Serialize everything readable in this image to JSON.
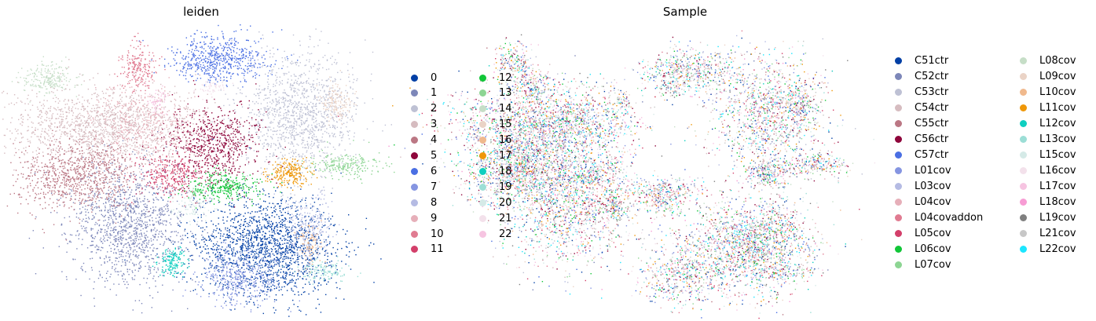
{
  "chart_data": [
    {
      "type": "scatter",
      "title": "leiden",
      "xlabel": "",
      "ylabel": "",
      "grid": false,
      "axes_visible": false,
      "legend_placement": "right",
      "legend": [
        {
          "label": "0",
          "color": "#023fa5"
        },
        {
          "label": "1",
          "color": "#7d87b9"
        },
        {
          "label": "2",
          "color": "#bec1d4"
        },
        {
          "label": "3",
          "color": "#d6bcc0"
        },
        {
          "label": "4",
          "color": "#bb7784"
        },
        {
          "label": "5",
          "color": "#8e063b"
        },
        {
          "label": "6",
          "color": "#4a6fe3"
        },
        {
          "label": "7",
          "color": "#8595e1"
        },
        {
          "label": "8",
          "color": "#b5bbe3"
        },
        {
          "label": "9",
          "color": "#e6afb9"
        },
        {
          "label": "10",
          "color": "#e07b91"
        },
        {
          "label": "11",
          "color": "#d33f6a"
        },
        {
          "label": "12",
          "color": "#11c638"
        },
        {
          "label": "13",
          "color": "#8dd593"
        },
        {
          "label": "14",
          "color": "#c6dec7"
        },
        {
          "label": "15",
          "color": "#ead3c6"
        },
        {
          "label": "16",
          "color": "#f0b98d"
        },
        {
          "label": "17",
          "color": "#ef9708"
        },
        {
          "label": "18",
          "color": "#0fcfc0"
        },
        {
          "label": "19",
          "color": "#9cded6"
        },
        {
          "label": "20",
          "color": "#d5eae7"
        },
        {
          "label": "21",
          "color": "#f3e1eb"
        },
        {
          "label": "22",
          "color": "#f6c4e1"
        }
      ]
    },
    {
      "type": "scatter",
      "title": "Sample",
      "xlabel": "",
      "ylabel": "",
      "grid": false,
      "axes_visible": false,
      "legend_placement": "right",
      "legend": [
        {
          "label": "C51ctr",
          "color": "#023fa5"
        },
        {
          "label": "C52ctr",
          "color": "#7d87b9"
        },
        {
          "label": "C53ctr",
          "color": "#bec1d4"
        },
        {
          "label": "C54ctr",
          "color": "#d6bcc0"
        },
        {
          "label": "C55ctr",
          "color": "#bb7784"
        },
        {
          "label": "C56ctr",
          "color": "#8e063b"
        },
        {
          "label": "C57ctr",
          "color": "#4a6fe3"
        },
        {
          "label": "L01cov",
          "color": "#8595e1"
        },
        {
          "label": "L03cov",
          "color": "#b5bbe3"
        },
        {
          "label": "L04cov",
          "color": "#e6afb9"
        },
        {
          "label": "L04covaddon",
          "color": "#e07b91"
        },
        {
          "label": "L05cov",
          "color": "#d33f6a"
        },
        {
          "label": "L06cov",
          "color": "#11c638"
        },
        {
          "label": "L07cov",
          "color": "#8dd593"
        },
        {
          "label": "L08cov",
          "color": "#c6dec7"
        },
        {
          "label": "L09cov",
          "color": "#ead3c6"
        },
        {
          "label": "L10cov",
          "color": "#f0b98d"
        },
        {
          "label": "L11cov",
          "color": "#ef9708"
        },
        {
          "label": "L12cov",
          "color": "#0fcfc0"
        },
        {
          "label": "L13cov",
          "color": "#9cded6"
        },
        {
          "label": "L15cov",
          "color": "#d5eae7"
        },
        {
          "label": "L16cov",
          "color": "#f3e1eb"
        },
        {
          "label": "L17cov",
          "color": "#f6c4e1"
        },
        {
          "label": "L18cov",
          "color": "#f79cd4"
        },
        {
          "label": "L19cov",
          "color": "#7f7f7f"
        },
        {
          "label": "L21cov",
          "color": "#c7c7c7"
        },
        {
          "label": "L22cov",
          "color": "#1ce6ff"
        }
      ]
    }
  ]
}
